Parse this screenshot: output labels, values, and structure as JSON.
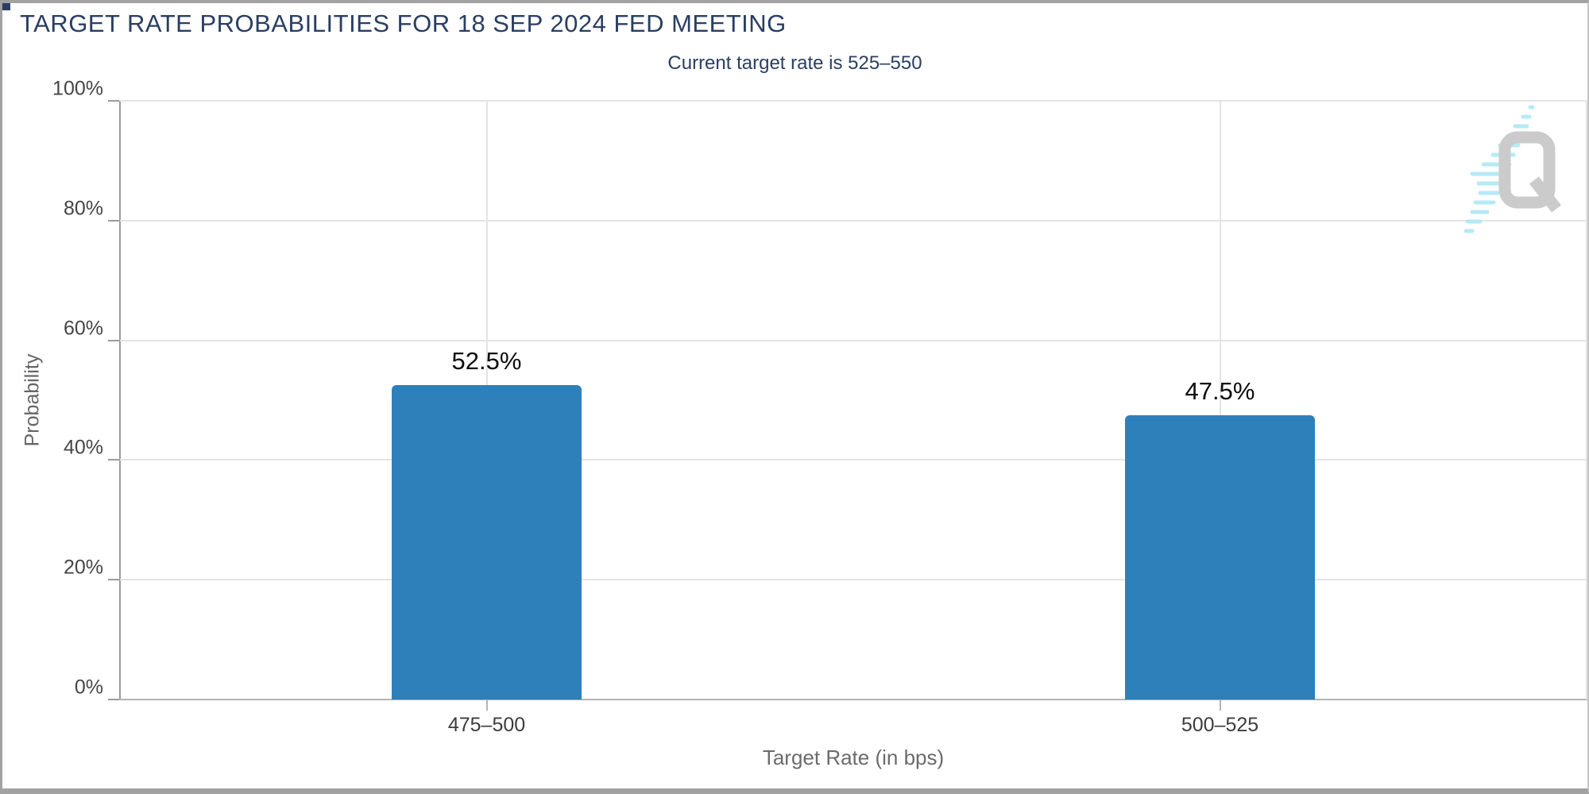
{
  "header": {
    "title": "TARGET RATE PROBABILITIES FOR 18 SEP 2024 FED MEETING",
    "subtitle": "Current target rate is 525–550"
  },
  "chart_data": {
    "type": "bar",
    "title": "TARGET RATE PROBABILITIES FOR 18 SEP 2024 FED MEETING",
    "subtitle": "Current target rate is 525–550",
    "categories": [
      "475–500",
      "500–525"
    ],
    "values": [
      52.5,
      47.5
    ],
    "value_labels": [
      "52.5%",
      "47.5%"
    ],
    "xlabel": "Target Rate (in bps)",
    "ylabel": "Probability",
    "ylim": [
      0,
      100
    ],
    "y_ticks": [
      {
        "value": 0,
        "label": "0%"
      },
      {
        "value": 20,
        "label": "20%"
      },
      {
        "value": 40,
        "label": "40%"
      },
      {
        "value": 60,
        "label": "60%"
      },
      {
        "value": 80,
        "label": "80%"
      },
      {
        "value": 100,
        "label": "100%"
      }
    ],
    "grid": true,
    "legend": false,
    "bar_color": "#2d80b9",
    "bar_width_pct": 13,
    "value_label_color": "#0d0d0d",
    "axis_text_color": "#454545",
    "title_color": "#2a3e63"
  },
  "watermark": {
    "icon": "q-logo-watermark",
    "letter": "Q",
    "letter_color": "#cbcbcb",
    "dash_color": "#aee8f5"
  }
}
